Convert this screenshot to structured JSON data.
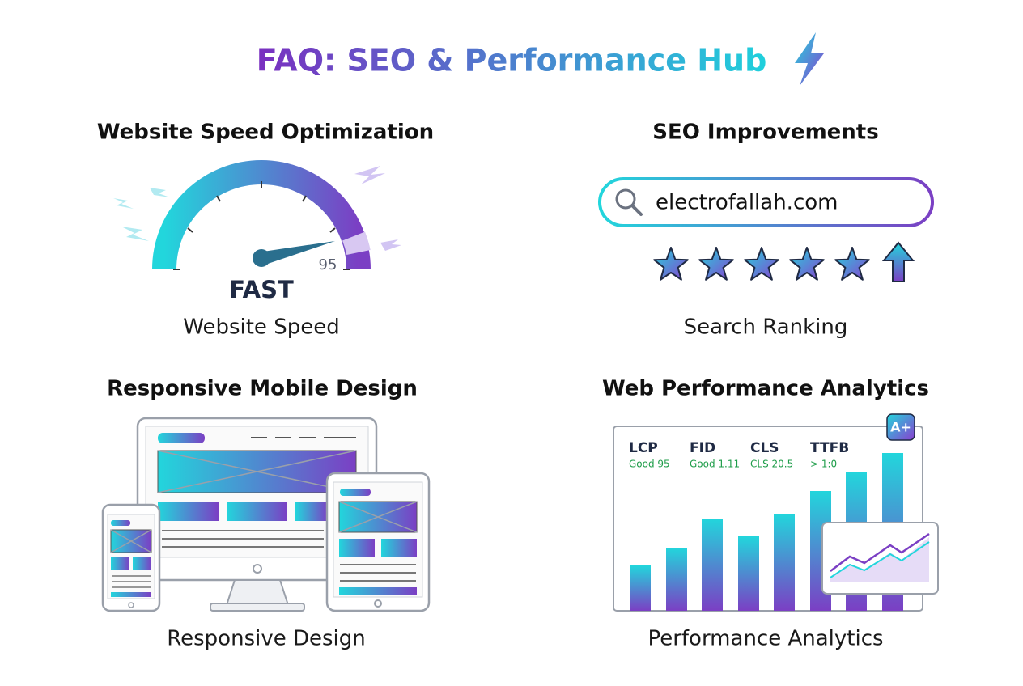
{
  "header": {
    "title": "FAQ: SEO & Performance Hub"
  },
  "panels": [
    {
      "heading": "Website Speed Optimization",
      "gauge_value": "95",
      "gauge_status": "FAST",
      "caption": "Website Speed"
    },
    {
      "heading": "SEO Improvements",
      "search_text": "electrofallah.com",
      "caption": "Search Ranking"
    },
    {
      "heading": "Responsive Mobile Design",
      "caption": "Responsive Design"
    },
    {
      "heading": "Web Performance Analytics",
      "badge": "A+",
      "metrics": [
        {
          "label": "LCP",
          "value": "Good 95"
        },
        {
          "label": "FID",
          "value": "Good 1.11"
        },
        {
          "label": "CLS",
          "value": "CLS 20.5"
        },
        {
          "label": "TTFB",
          "value": "> 1:0"
        }
      ],
      "caption": "Performance Analytics"
    }
  ]
}
